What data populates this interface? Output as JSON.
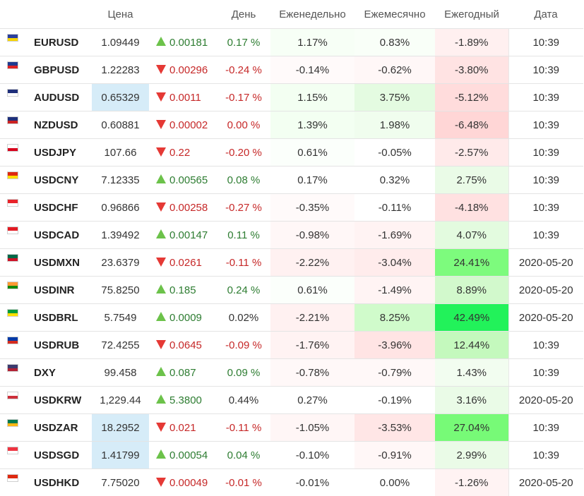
{
  "headers": {
    "flag": "",
    "symbol": "",
    "price": "Цена",
    "change": "",
    "day": "День",
    "weekly": "Еженедельно",
    "monthly": "Ежемесячно",
    "yearly": "Ежегодный",
    "date": "Дата"
  },
  "rows": [
    {
      "flag_icon": "eu-flag-icon",
      "flag_colors": [
        "#2a3f9c",
        "#f7d400"
      ],
      "symbol": "EURUSD",
      "price": "1.09449",
      "price_bg": "#ffffff",
      "direction": "up",
      "change": "0.00181",
      "day": "0.17 %",
      "day_dir": "up",
      "weekly": "1.17%",
      "weekly_bg": "#f7fff6",
      "monthly": "0.83%",
      "monthly_bg": "#f9fff8",
      "yearly": "-1.89%",
      "yearly_bg": "#fff0f0",
      "date": "10:39"
    },
    {
      "flag_icon": "uk-flag-icon",
      "flag_colors": [
        "#1f3a8f",
        "#d22"
      ],
      "symbol": "GBPUSD",
      "price": "1.22283",
      "price_bg": "#ffffff",
      "direction": "down",
      "change": "0.00296",
      "day": "-0.24 %",
      "day_dir": "down",
      "weekly": "-0.14%",
      "weekly_bg": "#fffafa",
      "monthly": "-0.62%",
      "monthly_bg": "#fff7f7",
      "yearly": "-3.80%",
      "yearly_bg": "#ffe3e3",
      "date": "10:39"
    },
    {
      "flag_icon": "au-flag-icon",
      "flag_colors": [
        "#1f2f7a",
        "#ffffff"
      ],
      "symbol": "AUDUSD",
      "price": "0.65329",
      "price_bg": "#d6ecf8",
      "direction": "down",
      "change": "0.0011",
      "day": "-0.17 %",
      "day_dir": "down",
      "weekly": "1.15%",
      "weekly_bg": "#f3fff2",
      "monthly": "3.75%",
      "monthly_bg": "#e4fbe1",
      "yearly": "-5.12%",
      "yearly_bg": "#ffdcdc",
      "date": "10:39"
    },
    {
      "flag_icon": "nz-flag-icon",
      "flag_colors": [
        "#1f2f7a",
        "#cc2222"
      ],
      "symbol": "NZDUSD",
      "price": "0.60881",
      "price_bg": "#ffffff",
      "direction": "down",
      "change": "0.00002",
      "day": "0.00 %",
      "day_dir": "down",
      "weekly": "1.39%",
      "weekly_bg": "#f3fff2",
      "monthly": "1.98%",
      "monthly_bg": "#f0fdee",
      "yearly": "-6.48%",
      "yearly_bg": "#ffd6d6",
      "date": "10:39"
    },
    {
      "flag_icon": "jp-flag-icon",
      "flag_colors": [
        "#ffffff",
        "#d8001c"
      ],
      "symbol": "USDJPY",
      "price": "107.66",
      "price_bg": "#ffffff",
      "direction": "down",
      "change": "0.22",
      "day": "-0.20 %",
      "day_dir": "down",
      "weekly": "0.61%",
      "weekly_bg": "#fbfffb",
      "monthly": "-0.05%",
      "monthly_bg": "#ffffff",
      "yearly": "-2.57%",
      "yearly_bg": "#ffeaea",
      "date": "10:39"
    },
    {
      "flag_icon": "cn-flag-icon",
      "flag_colors": [
        "#de2910",
        "#ffde00"
      ],
      "symbol": "USDCNY",
      "price": "7.12335",
      "price_bg": "#ffffff",
      "direction": "up",
      "change": "0.00565",
      "day": "0.08 %",
      "day_dir": "up",
      "weekly": "0.17%",
      "weekly_bg": "#ffffff",
      "monthly": "0.32%",
      "monthly_bg": "#ffffff",
      "yearly": "2.75%",
      "yearly_bg": "#eafbe7",
      "date": "10:39"
    },
    {
      "flag_icon": "ch-flag-icon",
      "flag_colors": [
        "#e8232a",
        "#ffffff"
      ],
      "symbol": "USDCHF",
      "price": "0.96866",
      "price_bg": "#ffffff",
      "direction": "down",
      "change": "0.00258",
      "day": "-0.27 %",
      "day_dir": "down",
      "weekly": "-0.35%",
      "weekly_bg": "#fffafa",
      "monthly": "-0.11%",
      "monthly_bg": "#ffffff",
      "yearly": "-4.18%",
      "yearly_bg": "#ffe1e1",
      "date": "10:39"
    },
    {
      "flag_icon": "ca-flag-icon",
      "flag_colors": [
        "#e31b23",
        "#ffffff"
      ],
      "symbol": "USDCAD",
      "price": "1.39492",
      "price_bg": "#ffffff",
      "direction": "up",
      "change": "0.00147",
      "day": "0.11 %",
      "day_dir": "up",
      "weekly": "-0.98%",
      "weekly_bg": "#fff7f7",
      "monthly": "-1.69%",
      "monthly_bg": "#fff3f3",
      "yearly": "4.07%",
      "yearly_bg": "#e3fbdf",
      "date": "10:39"
    },
    {
      "flag_icon": "mx-flag-icon",
      "flag_colors": [
        "#006847",
        "#ce1126"
      ],
      "symbol": "USDMXN",
      "price": "23.6379",
      "price_bg": "#ffffff",
      "direction": "down",
      "change": "0.0261",
      "day": "-0.11 %",
      "day_dir": "down",
      "weekly": "-2.22%",
      "weekly_bg": "#fff1f1",
      "monthly": "-3.04%",
      "monthly_bg": "#ffecec",
      "yearly": "24.41%",
      "yearly_bg": "#7dfb7d",
      "date": "2020-05-20"
    },
    {
      "flag_icon": "in-flag-icon",
      "flag_colors": [
        "#ff9933",
        "#138808"
      ],
      "symbol": "USDINR",
      "price": "75.8250",
      "price_bg": "#ffffff",
      "direction": "up",
      "change": "0.185",
      "day": "0.24 %",
      "day_dir": "up",
      "weekly": "0.61%",
      "weekly_bg": "#fbfffb",
      "monthly": "-1.49%",
      "monthly_bg": "#fff4f4",
      "yearly": "8.89%",
      "yearly_bg": "#d2f9cc",
      "date": "2020-05-20"
    },
    {
      "flag_icon": "br-flag-icon",
      "flag_colors": [
        "#009c3b",
        "#ffdf00"
      ],
      "symbol": "USDBRL",
      "price": "5.7549",
      "price_bg": "#ffffff",
      "direction": "up",
      "change": "0.0009",
      "day": "0.02%",
      "day_dir": "neutral",
      "weekly": "-2.21%",
      "weekly_bg": "#fff1f1",
      "monthly": "8.25%",
      "monthly_bg": "#d0fbcb",
      "yearly": "42.49%",
      "yearly_bg": "#22f25a",
      "date": "2020-05-20"
    },
    {
      "flag_icon": "ru-flag-icon",
      "flag_colors": [
        "#0039a6",
        "#d52b1e"
      ],
      "symbol": "USDRUB",
      "price": "72.4255",
      "price_bg": "#ffffff",
      "direction": "down",
      "change": "0.0645",
      "day": "-0.09 %",
      "day_dir": "down",
      "weekly": "-1.76%",
      "weekly_bg": "#fff3f3",
      "monthly": "-3.96%",
      "monthly_bg": "#ffe4e4",
      "yearly": "12.44%",
      "yearly_bg": "#c4f9bd",
      "date": "10:39"
    },
    {
      "flag_icon": "us-flag-icon",
      "flag_colors": [
        "#3c3b6e",
        "#b22234"
      ],
      "symbol": "DXY",
      "price": "99.458",
      "price_bg": "#ffffff",
      "direction": "up",
      "change": "0.087",
      "day": "0.09 %",
      "day_dir": "up",
      "weekly": "-0.78%",
      "weekly_bg": "#fff8f8",
      "monthly": "-0.79%",
      "monthly_bg": "#fff8f8",
      "yearly": "1.43%",
      "yearly_bg": "#f2fdf0",
      "date": "10:39"
    },
    {
      "flag_icon": "kr-flag-icon",
      "flag_colors": [
        "#ffffff",
        "#cd2e3a"
      ],
      "symbol": "USDKRW",
      "price": "1,229.44",
      "price_bg": "#ffffff",
      "direction": "up",
      "change": "5.3800",
      "day": "0.44%",
      "day_dir": "neutral",
      "weekly": "0.27%",
      "weekly_bg": "#ffffff",
      "monthly": "-0.19%",
      "monthly_bg": "#ffffff",
      "yearly": "3.16%",
      "yearly_bg": "#eafbe7",
      "date": "2020-05-20"
    },
    {
      "flag_icon": "za-flag-icon",
      "flag_colors": [
        "#007a4d",
        "#ffb612"
      ],
      "symbol": "USDZAR",
      "price": "18.2952",
      "price_bg": "#d6ecf8",
      "direction": "down",
      "change": "0.021",
      "day": "-0.11 %",
      "day_dir": "down",
      "weekly": "-1.05%",
      "weekly_bg": "#fff6f6",
      "monthly": "-3.53%",
      "monthly_bg": "#ffe6e6",
      "yearly": "27.04%",
      "yearly_bg": "#77fa77",
      "date": "10:39"
    },
    {
      "flag_icon": "sg-flag-icon",
      "flag_colors": [
        "#ef3340",
        "#ffffff"
      ],
      "symbol": "USDSGD",
      "price": "1.41799",
      "price_bg": "#d6ecf8",
      "direction": "up",
      "change": "0.00054",
      "day": "0.04 %",
      "day_dir": "up",
      "weekly": "-0.10%",
      "weekly_bg": "#ffffff",
      "monthly": "-0.91%",
      "monthly_bg": "#fff7f7",
      "yearly": "2.99%",
      "yearly_bg": "#eafbe7",
      "date": "10:39"
    },
    {
      "flag_icon": "hk-flag-icon",
      "flag_colors": [
        "#de2910",
        "#ffffff"
      ],
      "symbol": "USDHKD",
      "price": "7.75020",
      "price_bg": "#ffffff",
      "direction": "down",
      "change": "0.00049",
      "day": "-0.01 %",
      "day_dir": "down",
      "weekly": "-0.01%",
      "weekly_bg": "#ffffff",
      "monthly": "0.00%",
      "monthly_bg": "#ffffff",
      "yearly": "-1.26%",
      "yearly_bg": "#fff3f3",
      "date": "2020-05-20"
    }
  ]
}
